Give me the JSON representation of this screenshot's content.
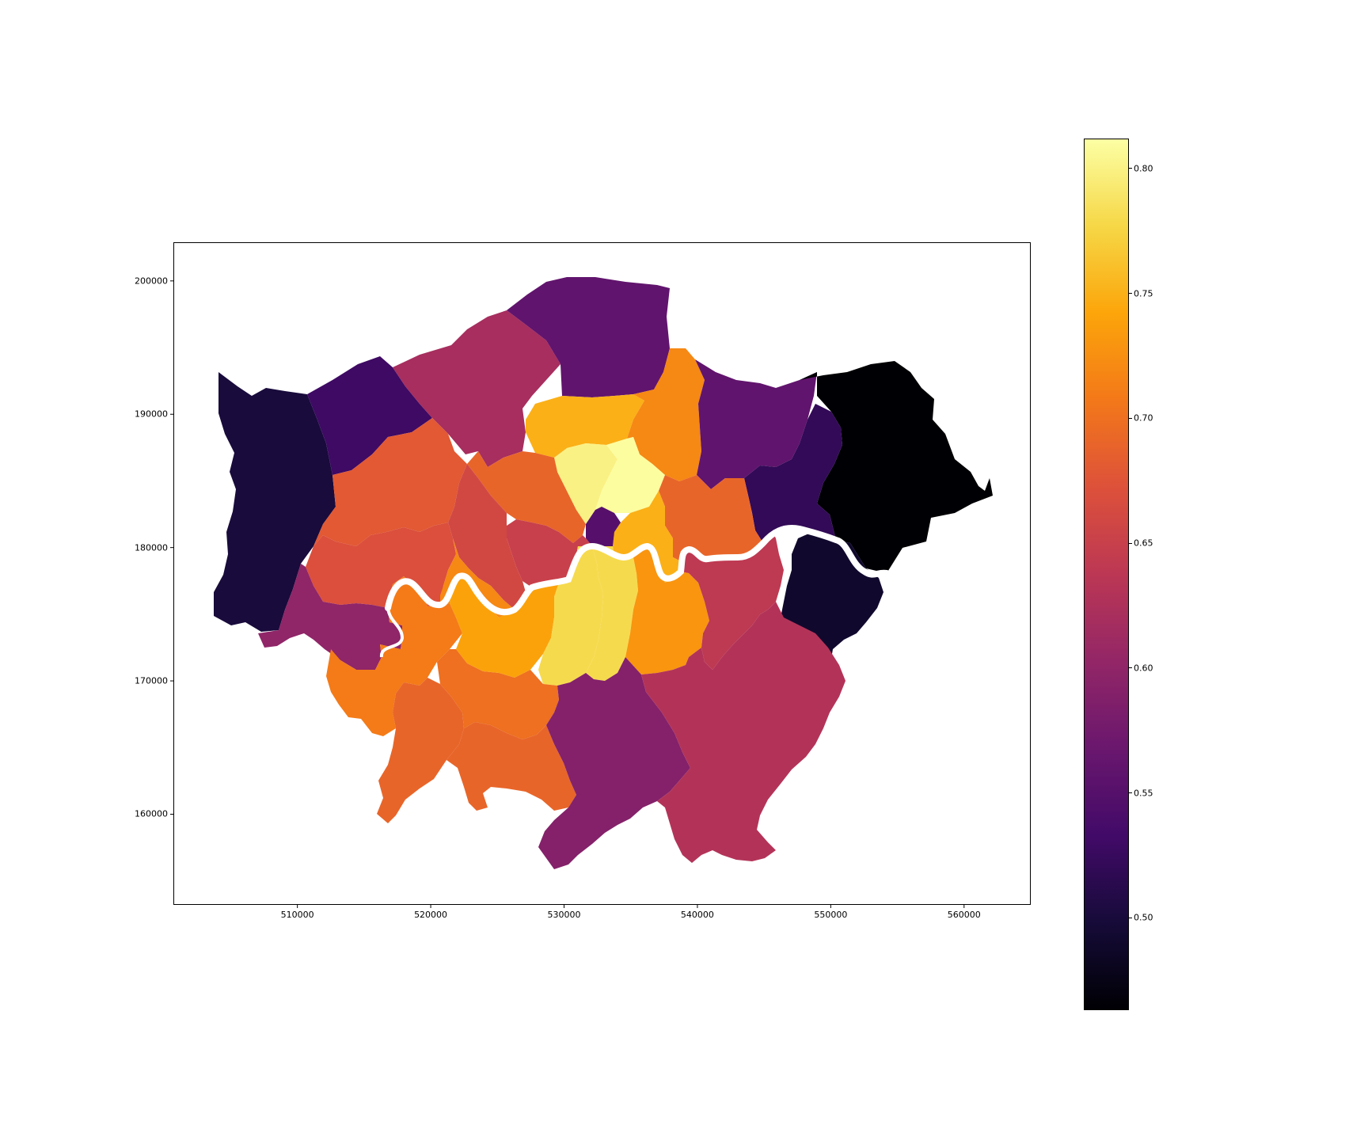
{
  "chart_data": {
    "type": "choropleth",
    "title": "",
    "xlabel": "",
    "ylabel": "",
    "x_ticks": [
      "510000",
      "520000",
      "530000",
      "540000",
      "550000",
      "560000"
    ],
    "y_ticks": [
      "160000",
      "170000",
      "180000",
      "190000",
      "200000"
    ],
    "x_tick_values": [
      510000,
      520000,
      530000,
      540000,
      550000,
      560000
    ],
    "y_tick_values": [
      160000,
      170000,
      180000,
      190000,
      200000
    ],
    "xlim": [
      500700,
      565000
    ],
    "ylim": [
      153200,
      202900
    ],
    "colormap": "inferno",
    "colorbar": {
      "ticks": [
        "0.50",
        "0.55",
        "0.60",
        "0.65",
        "0.70",
        "0.75",
        "0.80"
      ],
      "tick_values": [
        0.5,
        0.55,
        0.6,
        0.65,
        0.7,
        0.75,
        0.8
      ],
      "vmin": 0.463,
      "vmax": 0.812
    },
    "regions": [
      {
        "id": "hillingdon",
        "value": 0.5
      },
      {
        "id": "harrow",
        "value": 0.53
      },
      {
        "id": "barnet",
        "value": 0.62
      },
      {
        "id": "enfield",
        "value": 0.56
      },
      {
        "id": "haringey",
        "value": 0.75
      },
      {
        "id": "waltham-forest",
        "value": 0.72
      },
      {
        "id": "redbridge",
        "value": 0.56
      },
      {
        "id": "havering",
        "value": 0.46
      },
      {
        "id": "barking",
        "value": 0.52
      },
      {
        "id": "brent",
        "value": 0.68
      },
      {
        "id": "ealing",
        "value": 0.67
      },
      {
        "id": "camden",
        "value": 0.69
      },
      {
        "id": "islington",
        "value": 0.8
      },
      {
        "id": "hackney",
        "value": 0.81
      },
      {
        "id": "newham",
        "value": 0.69
      },
      {
        "id": "tower-hamlets",
        "value": 0.75
      },
      {
        "id": "city",
        "value": 0.55
      },
      {
        "id": "westminster",
        "value": 0.65
      },
      {
        "id": "kensington",
        "value": 0.66
      },
      {
        "id": "hammersmith",
        "value": 0.72
      },
      {
        "id": "hounslow",
        "value": 0.6
      },
      {
        "id": "richmond",
        "value": 0.71
      },
      {
        "id": "kingston",
        "value": 0.69
      },
      {
        "id": "wandsworth",
        "value": 0.74
      },
      {
        "id": "lambeth",
        "value": 0.78
      },
      {
        "id": "southwark",
        "value": 0.78
      },
      {
        "id": "lewisham",
        "value": 0.73
      },
      {
        "id": "greenwich",
        "value": 0.64
      },
      {
        "id": "bexley",
        "value": 0.49
      },
      {
        "id": "merton",
        "value": 0.7
      },
      {
        "id": "sutton",
        "value": 0.69
      },
      {
        "id": "croydon",
        "value": 0.59
      },
      {
        "id": "bromley",
        "value": 0.63
      }
    ]
  }
}
